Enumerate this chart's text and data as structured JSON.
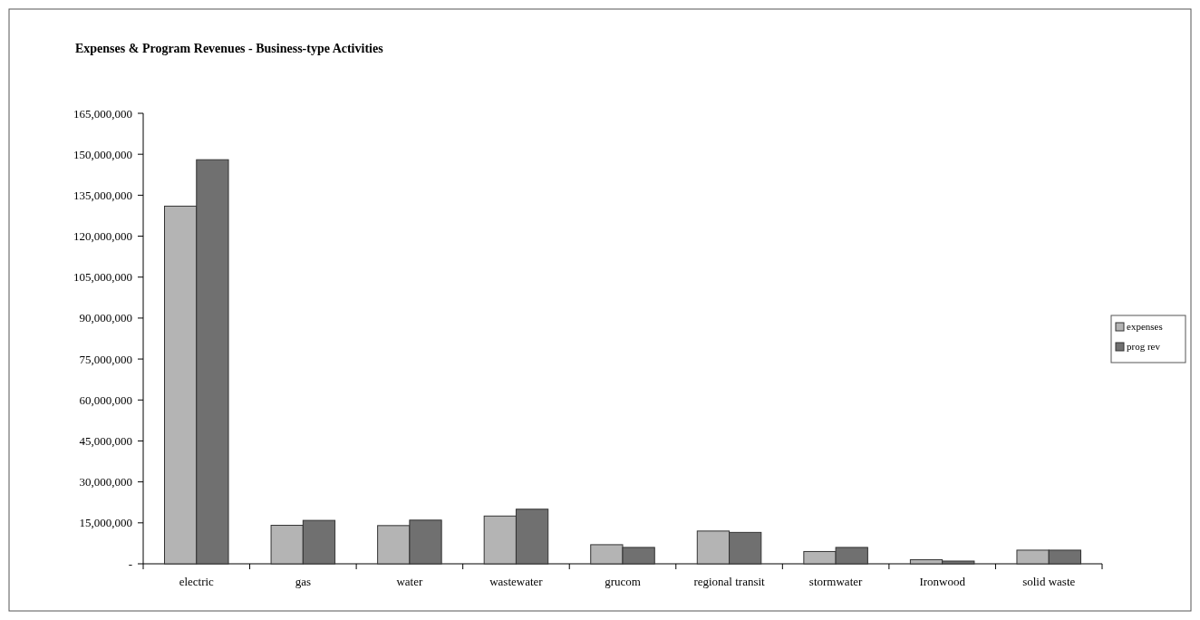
{
  "chart_data": {
    "type": "bar",
    "title": "Expenses & Program Revenues - Business-type Activities",
    "categories": [
      "electric",
      "gas",
      "water",
      "wastewater",
      "grucom",
      "regional transit",
      "stormwater",
      "Ironwood",
      "solid waste"
    ],
    "series": [
      {
        "name": "expenses",
        "color": "#b4b4b4",
        "values": [
          131000000,
          14100000,
          14000000,
          17500000,
          7000000,
          12000000,
          4500000,
          1500000,
          5000000
        ]
      },
      {
        "name": "prog rev",
        "color": "#707070",
        "values": [
          148000000,
          15900000,
          16000000,
          20000000,
          6000000,
          11500000,
          6000000,
          1000000,
          5000000
        ]
      }
    ],
    "ylim": [
      0,
      165000000
    ],
    "yticks": [
      {
        "value": 0,
        "label": "-"
      },
      {
        "value": 15000000,
        "label": "15,000,000"
      },
      {
        "value": 30000000,
        "label": "30,000,000"
      },
      {
        "value": 45000000,
        "label": "45,000,000"
      },
      {
        "value": 60000000,
        "label": "60,000,000"
      },
      {
        "value": 75000000,
        "label": "75,000,000"
      },
      {
        "value": 90000000,
        "label": "90,000,000"
      },
      {
        "value": 105000000,
        "label": "105,000,000"
      },
      {
        "value": 120000000,
        "label": "120,000,000"
      },
      {
        "value": 135000000,
        "label": "135,000,000"
      },
      {
        "value": 150000000,
        "label": "150,000,000"
      },
      {
        "value": 165000000,
        "label": "165,000,000"
      }
    ],
    "legend": "right",
    "grid": false
  }
}
